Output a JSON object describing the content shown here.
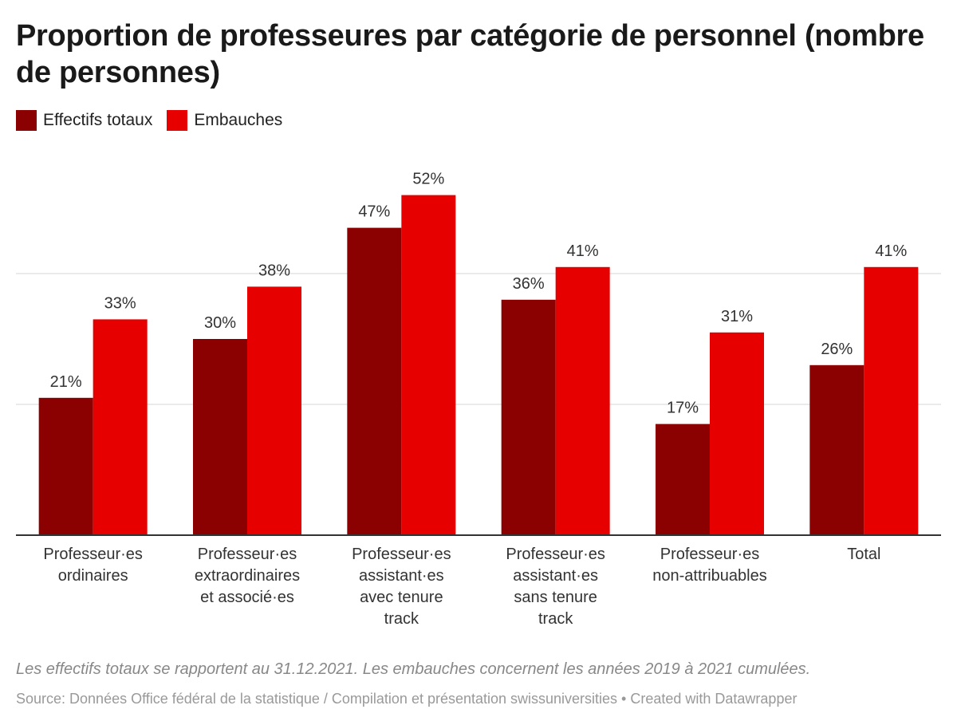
{
  "chart_data": {
    "type": "bar",
    "title": "Proportion de professeures par catégorie de personnel (nombre de personnes)",
    "categories": [
      [
        "Professeur·es",
        "ordinaires"
      ],
      [
        "Professeur·es",
        "extraordinaires",
        "et associé·es"
      ],
      [
        "Professeur·es",
        "assistant·es",
        "avec tenure",
        "track"
      ],
      [
        "Professeur·es",
        "assistant·es",
        "sans tenure",
        "track"
      ],
      [
        "Professeur·es",
        "non-attribuables"
      ],
      [
        "Total"
      ]
    ],
    "series": [
      {
        "name": "Effectifs totaux",
        "color": "#8b0000",
        "values": [
          21,
          30,
          47,
          36,
          17,
          26
        ]
      },
      {
        "name": "Embauches",
        "color": "#e60000",
        "values": [
          33,
          38,
          52,
          41,
          31,
          41
        ]
      }
    ],
    "value_suffix": "%",
    "ylim": [
      0,
      60
    ],
    "gridlines": [
      20,
      40
    ],
    "grid": true,
    "legend": "top-left",
    "xlabel": "",
    "ylabel": ""
  },
  "notes": "Les effectifs totaux se rapportent au 31.12.2021. Les embauches concernent les années 2019 à 2021 cumulées.",
  "source": "Source: Données Office fédéral de la statistique / Compilation et présentation swissuniversities • Created with Datawrapper"
}
